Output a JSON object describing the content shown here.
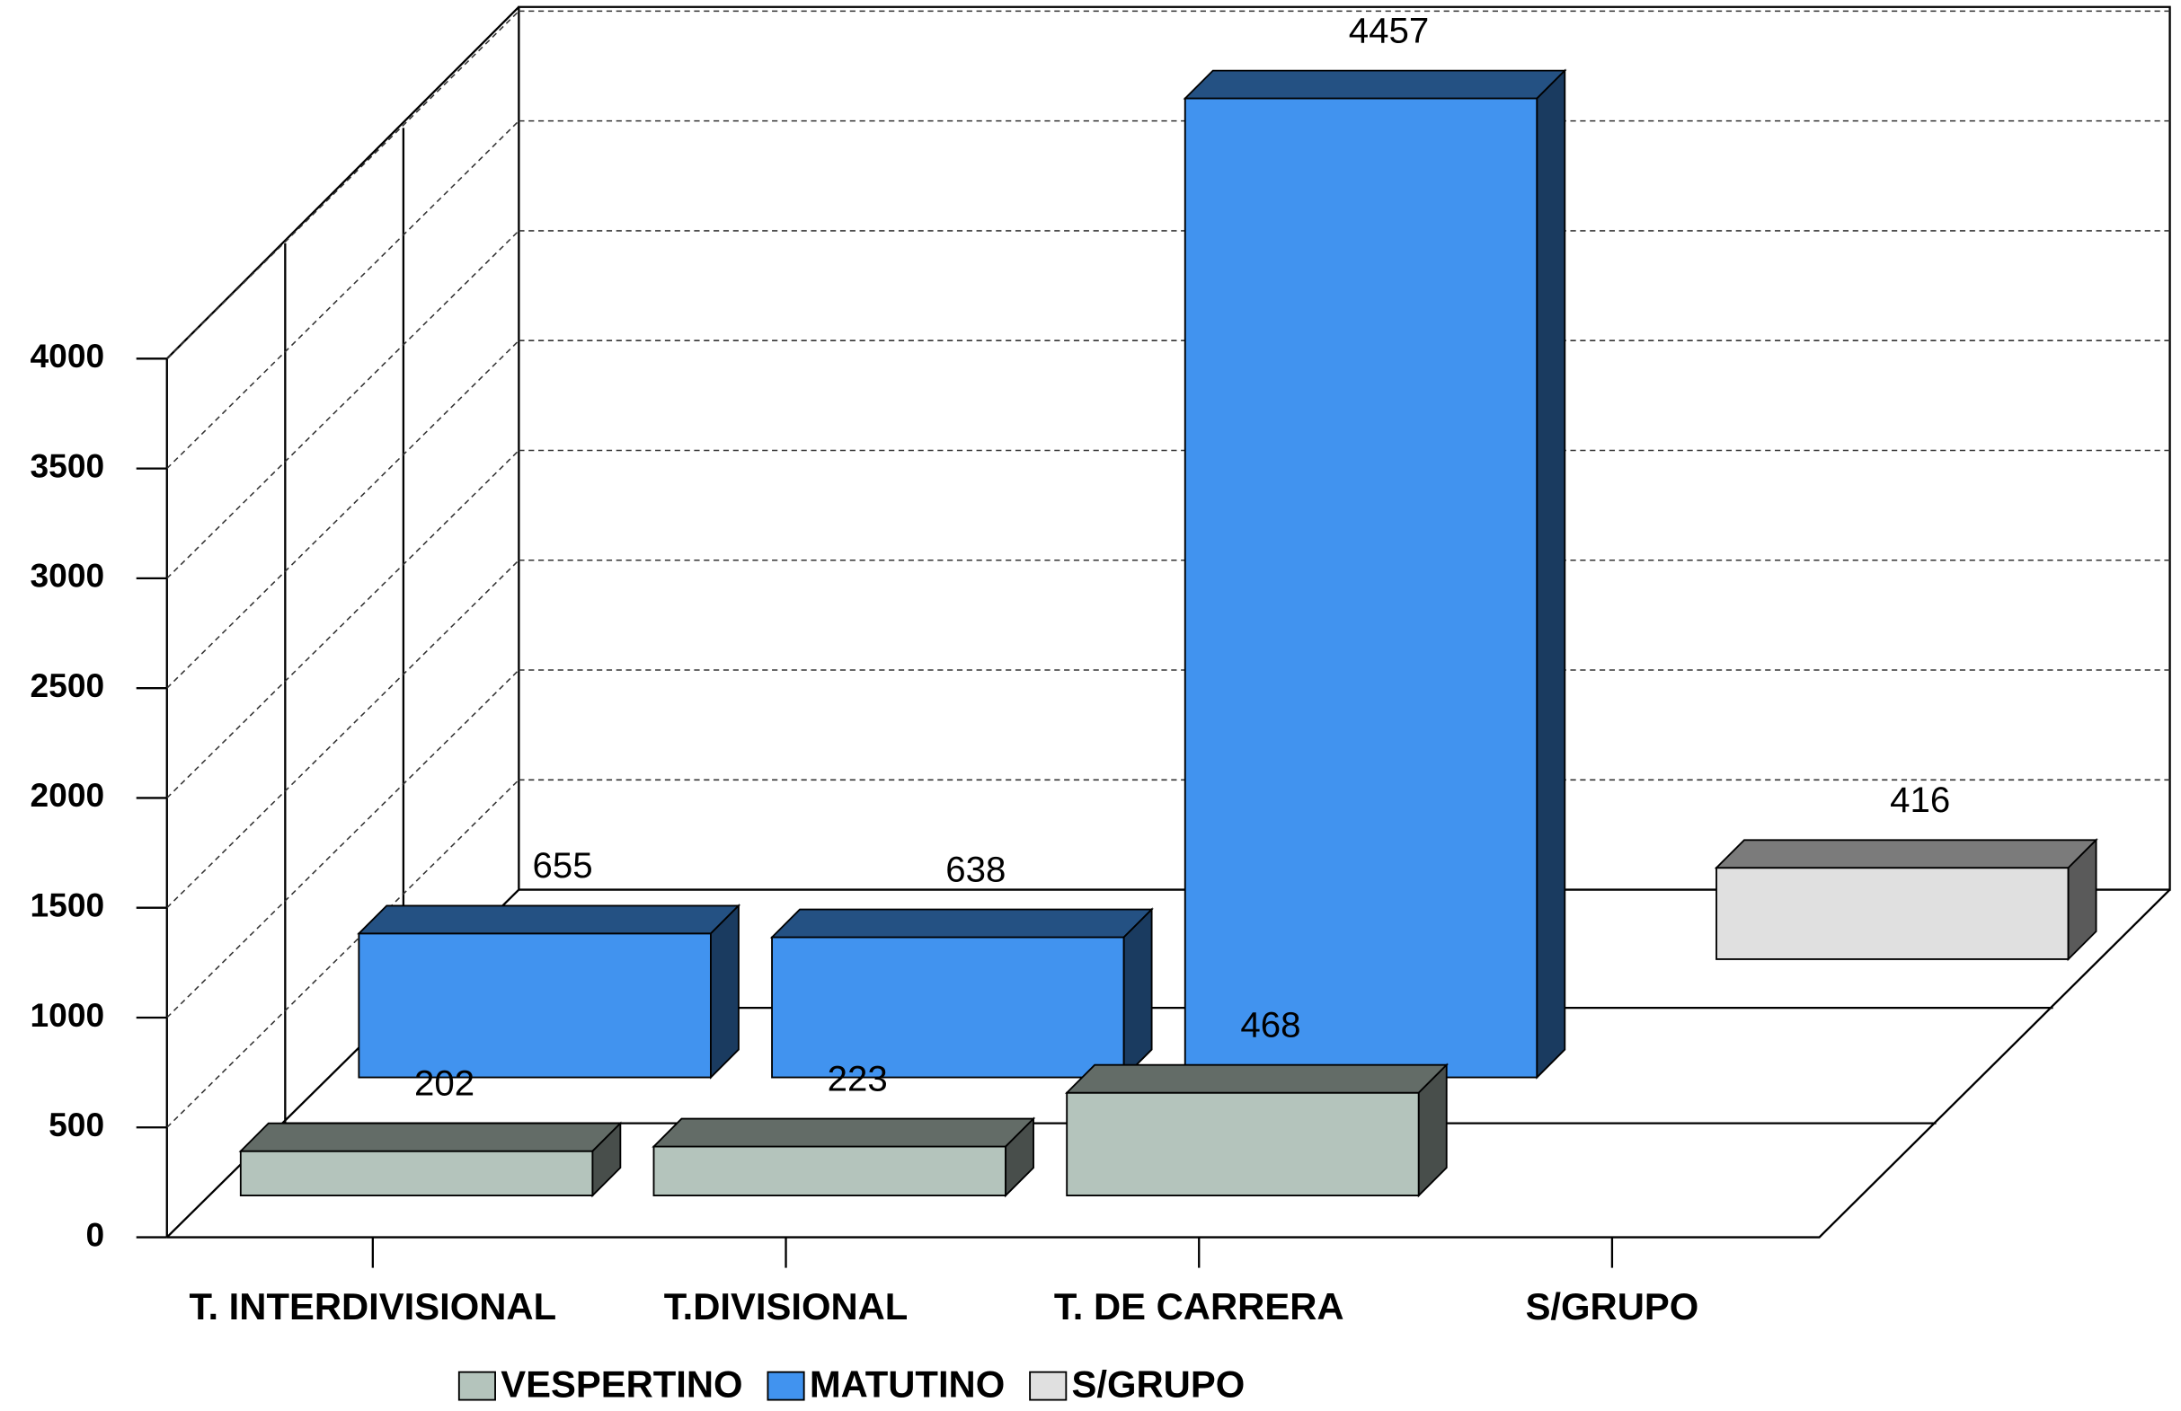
{
  "chart_data": {
    "type": "bar3d",
    "categories": [
      "T. INTERDIVISIONAL",
      "T.DIVISIONAL",
      "T. DE CARRERA",
      "S/GRUPO"
    ],
    "series": [
      {
        "name": "VESPERTINO",
        "color": "#b4c4bc",
        "values": [
          202,
          223,
          468,
          null
        ]
      },
      {
        "name": "MATUTINO",
        "color": "#4193ef",
        "values": [
          655,
          638,
          4457,
          null
        ]
      },
      {
        "name": "S/GRUPO",
        "color": "#e0e0e0",
        "values": [
          null,
          null,
          null,
          416
        ]
      }
    ],
    "ylim": [
      0,
      4000
    ],
    "yticks": [
      0,
      500,
      1000,
      1500,
      2000,
      2500,
      3000,
      3500,
      4000
    ],
    "grid": true,
    "legend": "bottom"
  }
}
